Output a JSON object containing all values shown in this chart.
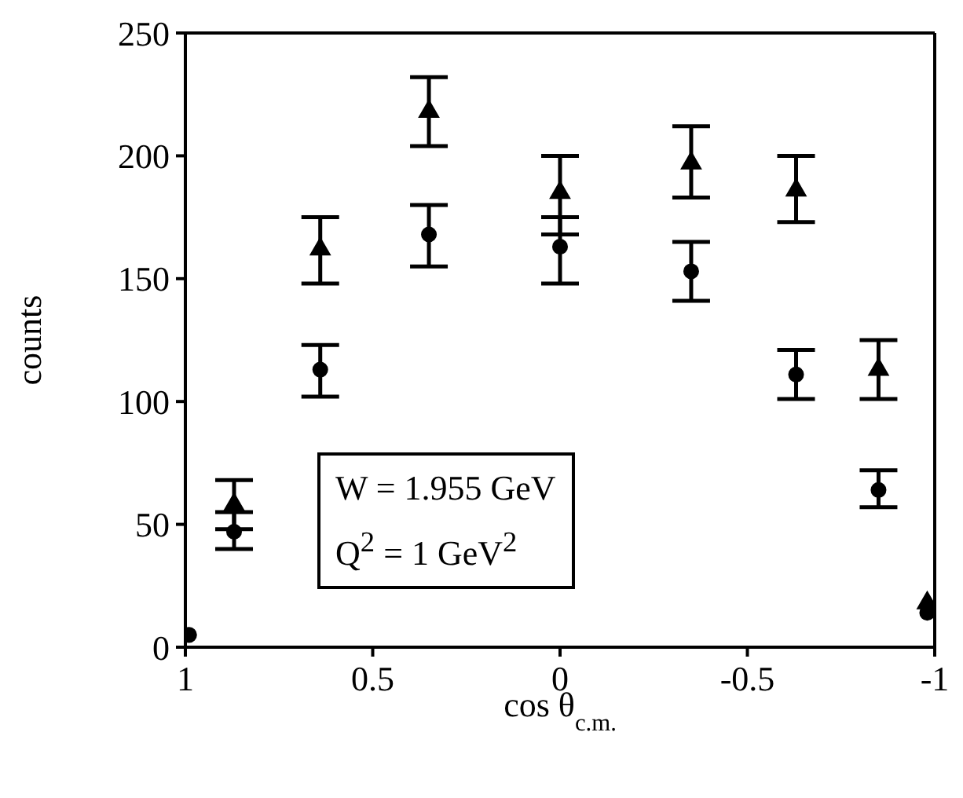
{
  "chart_data": {
    "type": "scatter",
    "xlabel": "cos θ$_{c.m.}$",
    "ylabel": "counts",
    "annotations": [
      "W = 1.955 GeV",
      "Q$^{2}$ = 1 GeV$^{2}$"
    ],
    "xlim": [
      1,
      -1
    ],
    "xticks": [
      1,
      0.5,
      0,
      -0.5,
      -1
    ],
    "ylim": [
      0,
      250
    ],
    "yticks": [
      0,
      50,
      100,
      150,
      200,
      250
    ],
    "series": [
      {
        "color": "#000000",
        "marker": "triangle",
        "x": [
          0.87,
          0.64,
          0.35,
          0,
          -0.35,
          -0.63,
          -0.85,
          -0.98
        ],
        "values": [
          58,
          162,
          218,
          185,
          197,
          186,
          113,
          18
        ],
        "errors": [
          [
            48,
            68
          ],
          [
            148,
            175
          ],
          [
            204,
            232
          ],
          [
            168,
            200
          ],
          [
            183,
            212
          ],
          [
            173,
            200
          ],
          [
            101,
            125
          ],
          null
        ]
      },
      {
        "color": "#000000",
        "marker": "circle",
        "x": [
          0.99,
          0.87,
          0.64,
          0.35,
          0,
          -0.35,
          -0.63,
          -0.85,
          -0.98
        ],
        "values": [
          5,
          47,
          113,
          168,
          163,
          153,
          111,
          64,
          14
        ],
        "errors": [
          null,
          [
            40,
            55
          ],
          [
            102,
            123
          ],
          [
            155,
            180
          ],
          [
            148,
            175
          ],
          [
            141,
            165
          ],
          [
            101,
            121
          ],
          [
            57,
            72
          ],
          null
        ]
      }
    ]
  }
}
